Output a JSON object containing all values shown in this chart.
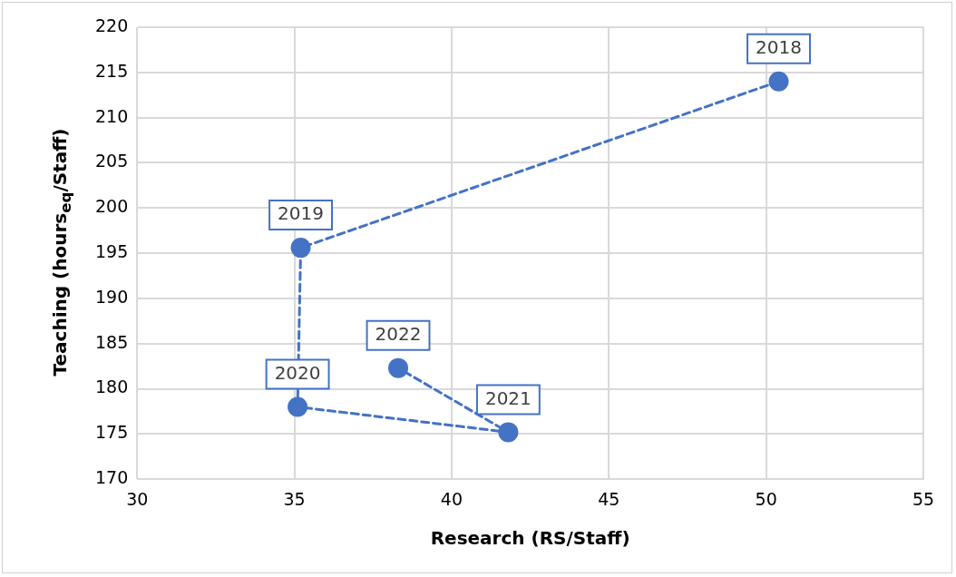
{
  "chart_data": {
    "type": "line",
    "xlabel": "Research (RS/Staff)",
    "ylabel": "Teaching (hours$_{eq}$/Staff)",
    "x": [
      50.4,
      35.2,
      35.1,
      41.8,
      38.3
    ],
    "series": [
      {
        "color": "#4472c4",
        "values": [
          214.0,
          195.6,
          178.0,
          175.2,
          182.3
        ]
      }
    ],
    "xlim": [
      30,
      55
    ],
    "xticks": [
      30,
      35,
      40,
      45,
      50,
      55
    ],
    "ylim": [
      170,
      220
    ],
    "yticks": [
      170,
      175,
      180,
      185,
      190,
      195,
      200,
      205,
      210,
      215,
      220
    ],
    "grid": true,
    "legend": false,
    "marker": "circle",
    "line_style": "dashed",
    "annotations": [
      {
        "text": "2018",
        "x": 50.4,
        "y": 214.0
      },
      {
        "text": "2019",
        "x": 35.2,
        "y": 195.6
      },
      {
        "text": "2020",
        "x": 35.1,
        "y": 178.0
      },
      {
        "text": "2021",
        "x": 41.8,
        "y": 175.2
      },
      {
        "text": "2022",
        "x": 38.3,
        "y": 182.3
      }
    ]
  }
}
